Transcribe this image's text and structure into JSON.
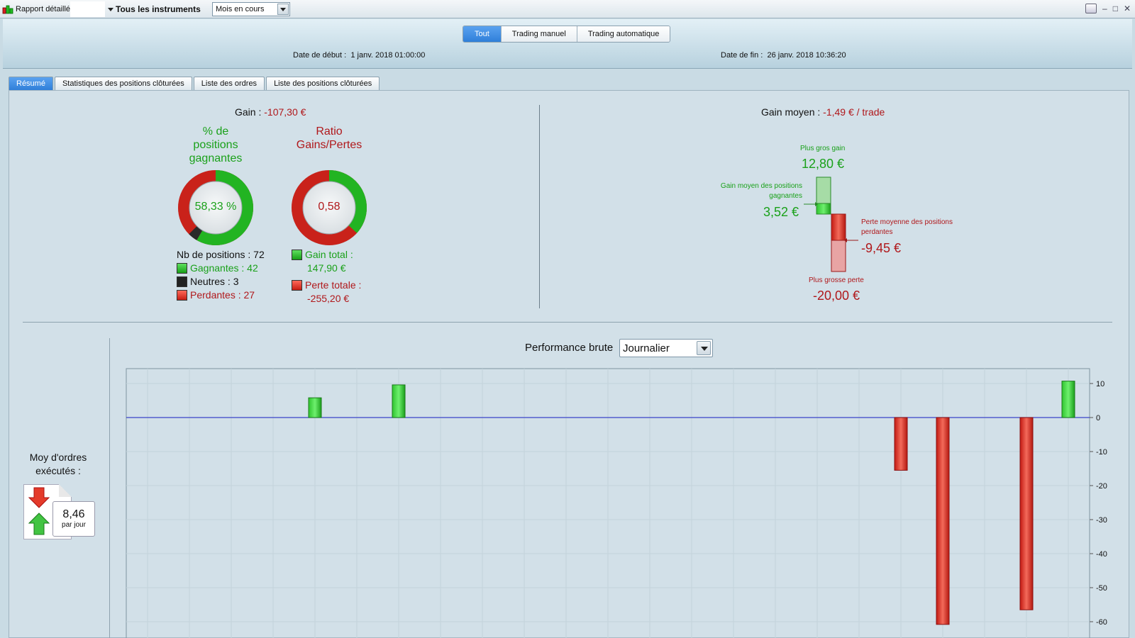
{
  "topbar": {
    "title": "Rapport détaillé",
    "instrument": "Tous les instruments",
    "period": "Mois en cours"
  },
  "header": {
    "segments": [
      "Tout",
      "Trading manuel",
      "Trading automatique"
    ],
    "active_segment": "Tout",
    "start_label": "Date de début :",
    "start_value": "1 janv. 2018 01:00:00",
    "end_label": "Date de fin :",
    "end_value": "26 janv. 2018 10:36:20"
  },
  "tabs": [
    "Résumé",
    "Statistiques des positions clôturées",
    "Liste des ordres",
    "Liste des positions clôturées"
  ],
  "summary": {
    "gain_label": "Gain :",
    "gain_value": "-107,30 €",
    "win_pct_title_1": "% de",
    "win_pct_title_2": "positions",
    "win_pct_title_3": "gagnantes",
    "win_pct_value": "58,33 %",
    "ratio_title_1": "Ratio",
    "ratio_title_2": "Gains/Pertes",
    "ratio_value": "0,58",
    "nb_positions": "Nb de positions : 72",
    "gagnantes": "Gagnantes : 42",
    "neutres": "Neutres : 3",
    "perdantes": "Perdantes : 27",
    "gain_total_label": "Gain total :",
    "gain_total_value": "147,90 €",
    "perte_totale_label": "Perte totale :",
    "perte_totale_value": "-255,20 €",
    "avg_label": "Gain moyen :",
    "avg_value": "-1,49 € / trade",
    "best_label": "Plus gros gain",
    "best_value": "12,80 €",
    "avg_win_label_1": "Gain moyen des positions",
    "avg_win_label_2": "gagnantes",
    "avg_win_value": "3,52 €",
    "avg_loss_label_1": "Perte moyenne des positions",
    "avg_loss_label_2": "perdantes",
    "avg_loss_value": "-9,45 €",
    "worst_label": "Plus grosse perte",
    "worst_value": "-20,00 €"
  },
  "orders": {
    "title_1": "Moy d'ordres",
    "title_2": "exécutés :",
    "value": "8,46",
    "unit": "par jour"
  },
  "performance": {
    "title": "Performance brute",
    "granularity": "Journalier"
  },
  "colors": {
    "gain": "#1aa11a",
    "loss": "#b0181b",
    "accent": "#2f7fd9",
    "zero_line": "#3a44c8"
  },
  "chart_data": {
    "type": "bar",
    "ylabel": "",
    "ylim": [
      -64,
      14
    ],
    "yticks": [
      10,
      0,
      -10,
      -20,
      -30,
      -40,
      -50,
      -60
    ],
    "grid": true,
    "bars": [
      {
        "day": 5,
        "value": 5.8
      },
      {
        "day": 7,
        "value": 9.6
      },
      {
        "day": 19,
        "value": -15.5
      },
      {
        "day": 20,
        "value": -60.8
      },
      {
        "day": 22,
        "value": -56.5
      },
      {
        "day": 23,
        "value": 10.7
      }
    ]
  }
}
